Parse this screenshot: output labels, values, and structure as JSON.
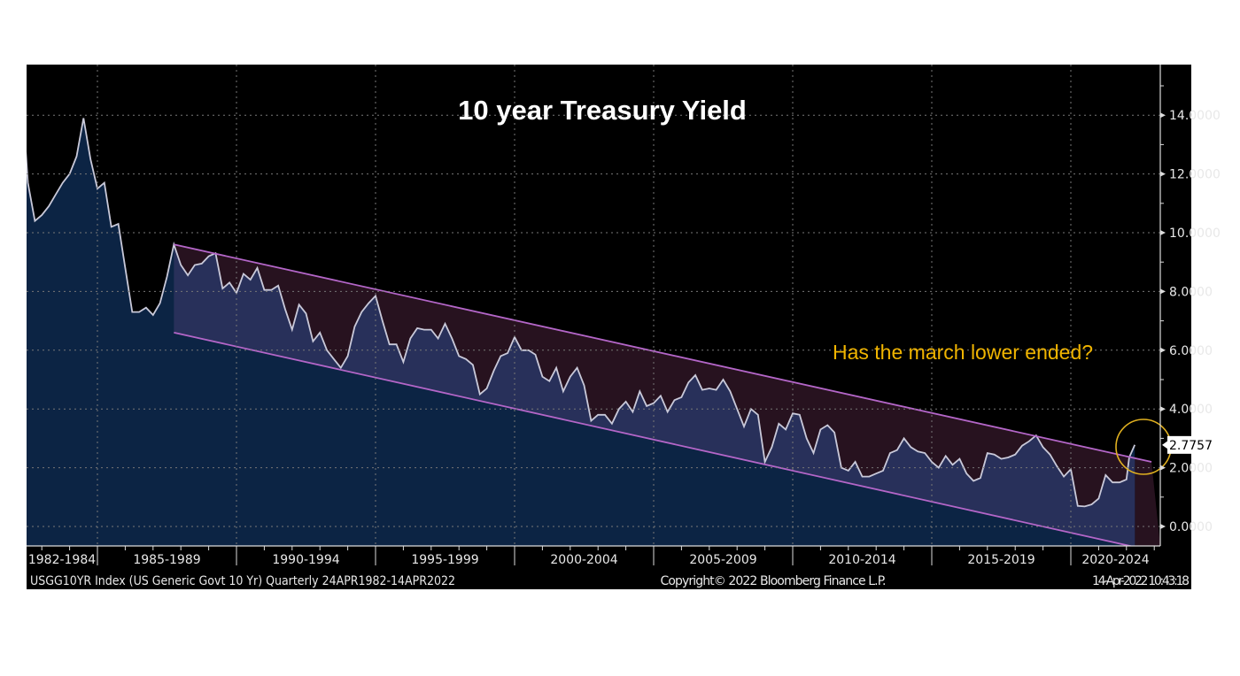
{
  "chart_data": {
    "type": "area",
    "title": "10 year Treasury Yield",
    "annotation": "Has the march lower ended?",
    "last_value_label": "2.7757",
    "x_tick_labels": [
      "1982-1984",
      "1985-1989",
      "1990-1994",
      "1995-1999",
      "2000-2004",
      "2005-2009",
      "2010-2014",
      "2015-2019",
      "2020-2024"
    ],
    "y_tick_labels": [
      "0.0000",
      "2.0000",
      "4.0000",
      "6.0000",
      "8.0000",
      "10.0000",
      "12.0000",
      "14.0000"
    ],
    "y_ticks": [
      0,
      2,
      4,
      6,
      8,
      10,
      12,
      14
    ],
    "ylim": [
      -0.7,
      16.5
    ],
    "xlim": [
      1982.3,
      2022.9
    ],
    "grid": true,
    "axis_side": "right",
    "footer_left": "USGG10YR Index (US Generic Govt 10 Yr)  Quarterly 24APR1982-14APR2022",
    "footer_center": "Copyright© 2022 Bloomberg Finance L.P.",
    "footer_right": "14-Apr-2022 10:43:18",
    "channel": {
      "upper": [
        [
          1987.75,
          9.6
        ],
        [
          2022.9,
          2.2
        ]
      ],
      "lower": [
        [
          1987.75,
          6.6
        ],
        [
          2022.3,
          -0.7
        ]
      ]
    },
    "colors": {
      "background": "#000000",
      "area": "#0c2444",
      "channel_below_line": "#28305a",
      "channel_above_line": "#27121f",
      "line": "#c9c9d9",
      "channel_line": "#b466c8",
      "title": "#ffffff",
      "annotation": "#f0b400",
      "circle": "#e0b020"
    },
    "series": [
      {
        "points": [
          [
            1982.3,
            14.5
          ],
          [
            1982.5,
            11.7
          ],
          [
            1982.75,
            10.4
          ],
          [
            1983.0,
            10.6
          ],
          [
            1983.25,
            10.9
          ],
          [
            1983.5,
            11.3
          ],
          [
            1983.75,
            11.7
          ],
          [
            1984.0,
            12.0
          ],
          [
            1984.25,
            12.6
          ],
          [
            1984.5,
            13.9
          ],
          [
            1984.75,
            12.5
          ],
          [
            1985.0,
            11.5
          ],
          [
            1985.25,
            11.7
          ],
          [
            1985.5,
            10.2
          ],
          [
            1985.75,
            10.3
          ],
          [
            1986.0,
            8.8
          ],
          [
            1986.25,
            7.3
          ],
          [
            1986.5,
            7.3
          ],
          [
            1986.75,
            7.45
          ],
          [
            1987.0,
            7.2
          ],
          [
            1987.25,
            7.6
          ],
          [
            1987.5,
            8.5
          ],
          [
            1987.75,
            9.6
          ],
          [
            1988.0,
            8.9
          ],
          [
            1988.25,
            8.55
          ],
          [
            1988.5,
            8.9
          ],
          [
            1988.75,
            8.95
          ],
          [
            1989.0,
            9.2
          ],
          [
            1989.25,
            9.3
          ],
          [
            1989.5,
            8.1
          ],
          [
            1989.75,
            8.3
          ],
          [
            1990.0,
            7.95
          ],
          [
            1990.25,
            8.6
          ],
          [
            1990.5,
            8.4
          ],
          [
            1990.75,
            8.8
          ],
          [
            1991.0,
            8.05
          ],
          [
            1991.25,
            8.05
          ],
          [
            1991.5,
            8.2
          ],
          [
            1991.75,
            7.4
          ],
          [
            1992.0,
            6.7
          ],
          [
            1992.25,
            7.55
          ],
          [
            1992.5,
            7.25
          ],
          [
            1992.75,
            6.3
          ],
          [
            1993.0,
            6.6
          ],
          [
            1993.25,
            6.0
          ],
          [
            1993.5,
            5.7
          ],
          [
            1993.75,
            5.4
          ],
          [
            1994.0,
            5.8
          ],
          [
            1994.25,
            6.8
          ],
          [
            1994.5,
            7.3
          ],
          [
            1994.75,
            7.6
          ],
          [
            1995.0,
            7.85
          ],
          [
            1995.25,
            7.0
          ],
          [
            1995.5,
            6.2
          ],
          [
            1995.75,
            6.2
          ],
          [
            1996.0,
            5.6
          ],
          [
            1996.25,
            6.4
          ],
          [
            1996.5,
            6.75
          ],
          [
            1996.75,
            6.7
          ],
          [
            1997.0,
            6.7
          ],
          [
            1997.25,
            6.4
          ],
          [
            1997.5,
            6.9
          ],
          [
            1997.75,
            6.4
          ],
          [
            1998.0,
            5.8
          ],
          [
            1998.25,
            5.7
          ],
          [
            1998.5,
            5.5
          ],
          [
            1998.75,
            4.5
          ],
          [
            1999.0,
            4.7
          ],
          [
            1999.25,
            5.3
          ],
          [
            1999.5,
            5.8
          ],
          [
            1999.75,
            5.9
          ],
          [
            2000.0,
            6.45
          ],
          [
            2000.25,
            6.0
          ],
          [
            2000.5,
            6.0
          ],
          [
            2000.75,
            5.85
          ],
          [
            2001.0,
            5.1
          ],
          [
            2001.25,
            4.95
          ],
          [
            2001.5,
            5.4
          ],
          [
            2001.75,
            4.6
          ],
          [
            2002.0,
            5.1
          ],
          [
            2002.25,
            5.4
          ],
          [
            2002.5,
            4.8
          ],
          [
            2002.75,
            3.6
          ],
          [
            2003.0,
            3.8
          ],
          [
            2003.25,
            3.8
          ],
          [
            2003.5,
            3.5
          ],
          [
            2003.75,
            4.0
          ],
          [
            2004.0,
            4.25
          ],
          [
            2004.25,
            3.9
          ],
          [
            2004.5,
            4.6
          ],
          [
            2004.75,
            4.1
          ],
          [
            2005.0,
            4.2
          ],
          [
            2005.25,
            4.45
          ],
          [
            2005.5,
            3.9
          ],
          [
            2005.75,
            4.3
          ],
          [
            2006.0,
            4.4
          ],
          [
            2006.25,
            4.9
          ],
          [
            2006.5,
            5.15
          ],
          [
            2006.75,
            4.65
          ],
          [
            2007.0,
            4.7
          ],
          [
            2007.25,
            4.65
          ],
          [
            2007.5,
            5.0
          ],
          [
            2007.75,
            4.6
          ],
          [
            2008.0,
            4.0
          ],
          [
            2008.25,
            3.4
          ],
          [
            2008.5,
            4.0
          ],
          [
            2008.75,
            3.8
          ],
          [
            2009.0,
            2.2
          ],
          [
            2009.25,
            2.7
          ],
          [
            2009.5,
            3.5
          ],
          [
            2009.75,
            3.3
          ],
          [
            2010.0,
            3.85
          ],
          [
            2010.25,
            3.8
          ],
          [
            2010.5,
            3.0
          ],
          [
            2010.75,
            2.5
          ],
          [
            2011.0,
            3.3
          ],
          [
            2011.25,
            3.45
          ],
          [
            2011.5,
            3.2
          ],
          [
            2011.75,
            2.0
          ],
          [
            2012.0,
            1.9
          ],
          [
            2012.25,
            2.2
          ],
          [
            2012.5,
            1.7
          ],
          [
            2012.75,
            1.7
          ],
          [
            2013.0,
            1.8
          ],
          [
            2013.25,
            1.9
          ],
          [
            2013.5,
            2.5
          ],
          [
            2013.75,
            2.6
          ],
          [
            2014.0,
            3.0
          ],
          [
            2014.25,
            2.7
          ],
          [
            2014.5,
            2.55
          ],
          [
            2014.75,
            2.5
          ],
          [
            2015.0,
            2.2
          ],
          [
            2015.25,
            2.0
          ],
          [
            2015.5,
            2.4
          ],
          [
            2015.75,
            2.1
          ],
          [
            2016.0,
            2.3
          ],
          [
            2016.25,
            1.8
          ],
          [
            2016.5,
            1.55
          ],
          [
            2016.75,
            1.65
          ],
          [
            2017.0,
            2.5
          ],
          [
            2017.25,
            2.45
          ],
          [
            2017.5,
            2.3
          ],
          [
            2017.75,
            2.35
          ],
          [
            2018.0,
            2.45
          ],
          [
            2018.25,
            2.75
          ],
          [
            2018.5,
            2.9
          ],
          [
            2018.75,
            3.1
          ],
          [
            2019.0,
            2.7
          ],
          [
            2019.25,
            2.45
          ],
          [
            2019.5,
            2.05
          ],
          [
            2019.75,
            1.7
          ],
          [
            2020.0,
            1.95
          ],
          [
            2020.25,
            0.7
          ],
          [
            2020.5,
            0.68
          ],
          [
            2020.75,
            0.75
          ],
          [
            2021.0,
            0.95
          ],
          [
            2021.25,
            1.75
          ],
          [
            2021.5,
            1.5
          ],
          [
            2021.75,
            1.5
          ],
          [
            2022.0,
            1.6
          ],
          [
            2022.1,
            2.35
          ],
          [
            2022.3,
            2.7757
          ]
        ]
      }
    ]
  }
}
